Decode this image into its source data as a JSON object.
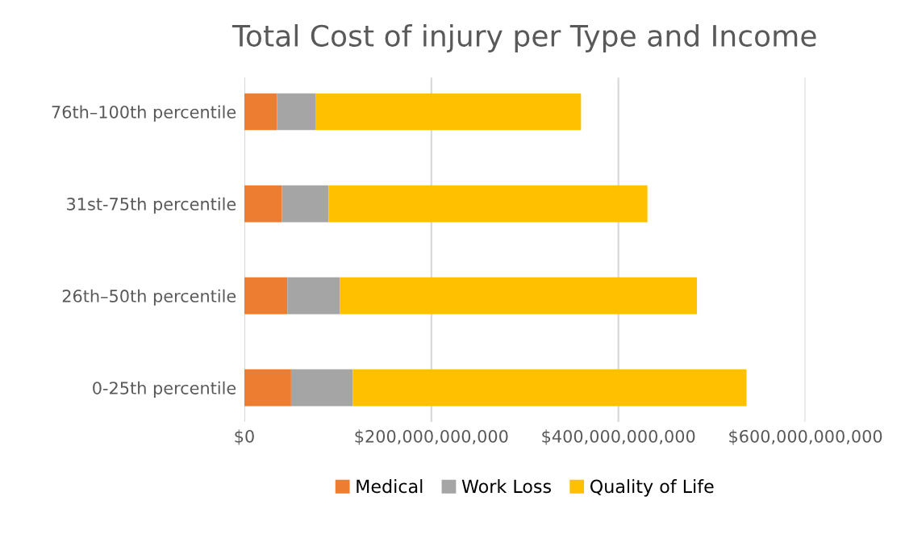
{
  "chart_data": {
    "type": "bar",
    "orientation": "horizontal",
    "stacked": true,
    "title": "Total Cost of injury per Type and Income",
    "categories": [
      "76th–100th percentile",
      "31st-75th percentile",
      "26th–50th percentile",
      "0-25th percentile"
    ],
    "series": [
      {
        "name": "Medical",
        "color": "#ed7d31",
        "values": [
          35000000000,
          40000000000,
          46000000000,
          50000000000
        ]
      },
      {
        "name": "Work Loss",
        "color": "#a5a5a5",
        "values": [
          41000000000,
          50000000000,
          56000000000,
          66000000000
        ]
      },
      {
        "name": "Quality of Life",
        "color": "#ffc000",
        "values": [
          284000000000,
          341000000000,
          382000000000,
          421000000000
        ]
      }
    ],
    "xlim": [
      0,
      600000000000
    ],
    "xticks": [
      {
        "value": 0,
        "label": "$0"
      },
      {
        "value": 200000000000,
        "label": "$200,000,000,000"
      },
      {
        "value": 400000000000,
        "label": "$400,000,000,000"
      },
      {
        "value": 600000000000,
        "label": "$600,000,000,000"
      }
    ],
    "grid": "x",
    "legend": "bottom"
  }
}
